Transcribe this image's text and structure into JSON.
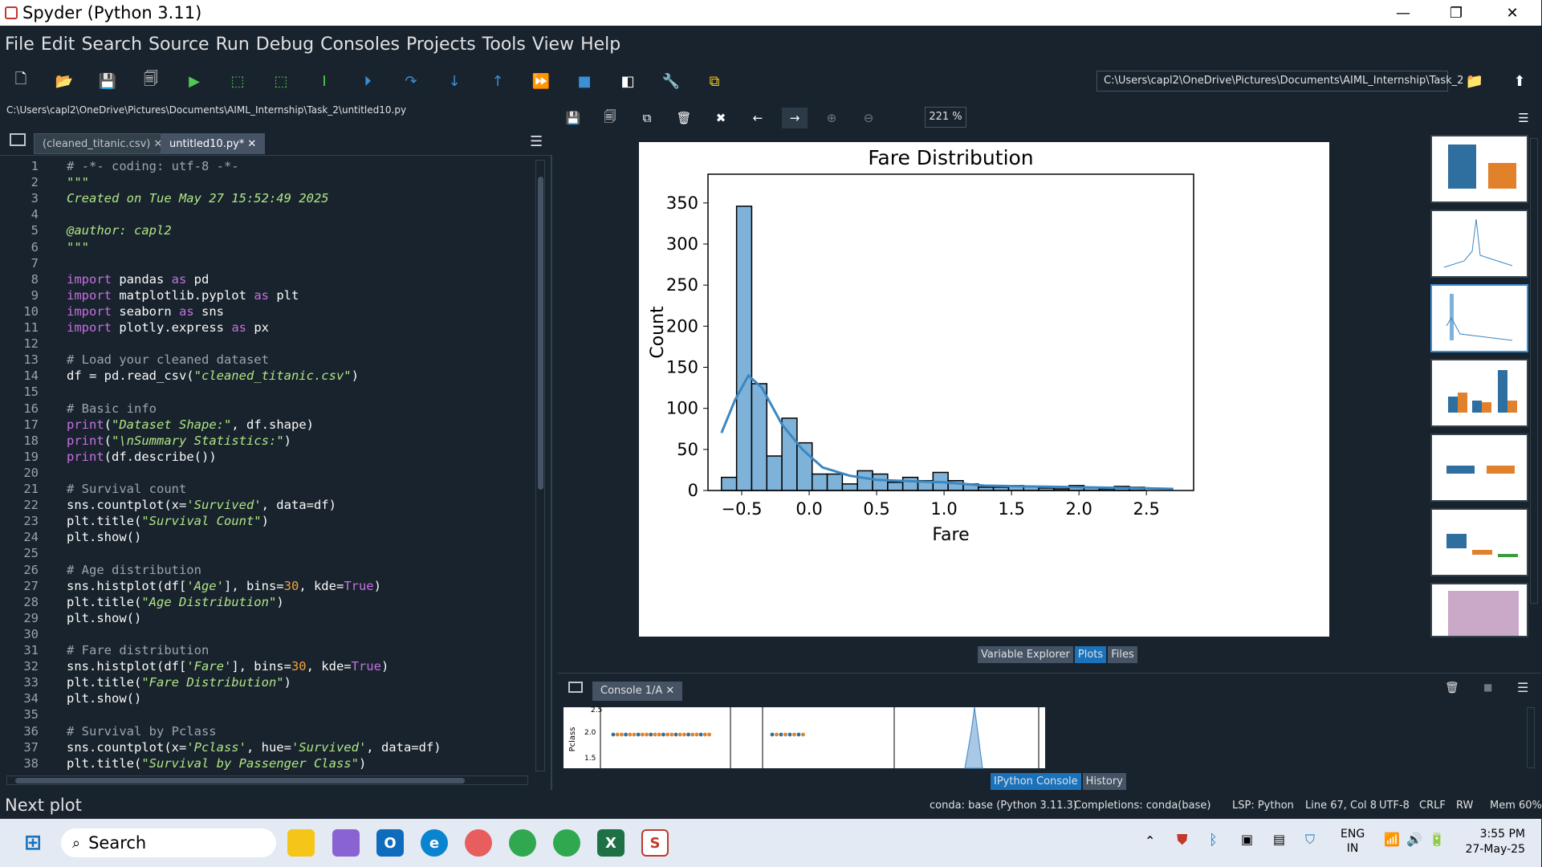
{
  "window": {
    "title": "Spyder (Python 3.11)",
    "min": "—",
    "max": "❐",
    "close": "✕"
  },
  "menu": [
    "File",
    "Edit",
    "Search",
    "Source",
    "Run",
    "Debug",
    "Consoles",
    "Projects",
    "Tools",
    "View",
    "Help"
  ],
  "toolbar": {
    "path": "C:\\Users\\capl2\\OneDrive\\Pictures\\Documents\\AIML_Internship\\Task_2"
  },
  "editor": {
    "file_path": "C:\\Users\\capl2\\OneDrive\\Pictures\\Documents\\AIML_Internship\\Task_2\\untitled10.py",
    "tabs": [
      {
        "label": "(cleaned_titanic.csv)"
      },
      {
        "label": "untitled10.py*"
      }
    ],
    "lines": [
      {
        "n": "1",
        "t": "# -*- coding: utf-8 -*-"
      },
      {
        "n": "2",
        "t": "\"\"\""
      },
      {
        "n": "3",
        "t": "Created on Tue May 27 15:52:49 2025"
      },
      {
        "n": "4",
        "t": ""
      },
      {
        "n": "5",
        "t": "@author: capl2"
      },
      {
        "n": "6",
        "t": "\"\"\""
      },
      {
        "n": "7",
        "t": ""
      },
      {
        "n": "8",
        "t": "import pandas as pd"
      },
      {
        "n": "9",
        "t": "import matplotlib.pyplot as plt"
      },
      {
        "n": "10",
        "t": "import seaborn as sns"
      },
      {
        "n": "11",
        "t": "import plotly.express as px"
      },
      {
        "n": "12",
        "t": ""
      },
      {
        "n": "13",
        "t": "# Load your cleaned dataset"
      },
      {
        "n": "14",
        "t": "df = pd.read_csv(\"cleaned_titanic.csv\")"
      },
      {
        "n": "15",
        "t": ""
      },
      {
        "n": "16",
        "t": "# Basic info"
      },
      {
        "n": "17",
        "t": "print(\"Dataset Shape:\", df.shape)"
      },
      {
        "n": "18",
        "t": "print(\"\\nSummary Statistics:\")"
      },
      {
        "n": "19",
        "t": "print(df.describe())"
      },
      {
        "n": "20",
        "t": ""
      },
      {
        "n": "21",
        "t": "# Survival count"
      },
      {
        "n": "22",
        "t": "sns.countplot(x='Survived', data=df)"
      },
      {
        "n": "23",
        "t": "plt.title(\"Survival Count\")"
      },
      {
        "n": "24",
        "t": "plt.show()"
      },
      {
        "n": "25",
        "t": ""
      },
      {
        "n": "26",
        "t": "# Age distribution"
      },
      {
        "n": "27",
        "t": "sns.histplot(df['Age'], bins=30, kde=True)"
      },
      {
        "n": "28",
        "t": "plt.title(\"Age Distribution\")"
      },
      {
        "n": "29",
        "t": "plt.show()"
      },
      {
        "n": "30",
        "t": ""
      },
      {
        "n": "31",
        "t": "# Fare distribution"
      },
      {
        "n": "32",
        "t": "sns.histplot(df['Fare'], bins=30, kde=True)"
      },
      {
        "n": "33",
        "t": "plt.title(\"Fare Distribution\")"
      },
      {
        "n": "34",
        "t": "plt.show()"
      },
      {
        "n": "35",
        "t": ""
      },
      {
        "n": "36",
        "t": "# Survival by Pclass"
      },
      {
        "n": "37",
        "t": "sns.countplot(x='Pclass', hue='Survived', data=df)"
      },
      {
        "n": "38",
        "t": "plt.title(\"Survival by Passenger Class\")"
      }
    ]
  },
  "plots": {
    "zoom": "221 %",
    "pane_tabs": [
      "Variable Explorer",
      "Plots",
      "Files"
    ]
  },
  "chart_data": {
    "type": "bar",
    "title": "Fare Distribution",
    "xlabel": "Fare",
    "ylabel": "Count",
    "xlim": [
      -0.75,
      2.85
    ],
    "ylim": [
      0,
      385
    ],
    "xticks": [
      "−0.5",
      "0.0",
      "0.5",
      "1.0",
      "1.5",
      "2.0",
      "2.5"
    ],
    "xtick_values": [
      -0.5,
      0,
      0.5,
      1,
      1.5,
      2,
      2.5
    ],
    "yticks": [
      "0",
      "50",
      "100",
      "150",
      "200",
      "250",
      "300",
      "350"
    ],
    "ytick_values": [
      0,
      50,
      100,
      150,
      200,
      250,
      300,
      350
    ],
    "bin_edges_start": -0.65,
    "bin_width": 0.112,
    "values": [
      16,
      346,
      130,
      42,
      88,
      58,
      20,
      20,
      8,
      24,
      20,
      10,
      16,
      12,
      22,
      12,
      8,
      4,
      4,
      6,
      5,
      3,
      2,
      6,
      4,
      2,
      5,
      4
    ],
    "kde": [
      [
        -0.65,
        70
      ],
      [
        -0.55,
        110
      ],
      [
        -0.45,
        140
      ],
      [
        -0.35,
        125
      ],
      [
        -0.2,
        80
      ],
      [
        -0.05,
        50
      ],
      [
        0.1,
        28
      ],
      [
        0.3,
        18
      ],
      [
        0.5,
        13
      ],
      [
        0.8,
        11
      ],
      [
        1.0,
        10
      ],
      [
        1.3,
        6
      ],
      [
        1.6,
        5
      ],
      [
        2.0,
        4
      ],
      [
        2.4,
        3
      ],
      [
        2.7,
        2
      ]
    ],
    "color": "#7fb2d8",
    "edge": "#000000",
    "line_color": "#3b87c2"
  },
  "console": {
    "tab": "Console 1/A",
    "ylabel": "Pclass",
    "ticks": [
      "2.5",
      "2.0",
      "1.5"
    ],
    "bottom_tabs": [
      "IPython Console",
      "History"
    ]
  },
  "status": {
    "message": "Next plot",
    "env": "conda: base (Python 3.11.3)",
    "completions": "Completions: conda(base)",
    "lsp": "LSP: Python",
    "position": "Line 67, Col 8",
    "encoding": "UTF-8",
    "eol": "CRLF",
    "perm": "RW",
    "mem": "Mem 60%"
  },
  "taskbar": {
    "search": "Search",
    "lang1": "ENG",
    "lang2": "IN",
    "time": "3:55 PM",
    "date": "27-May-25"
  }
}
